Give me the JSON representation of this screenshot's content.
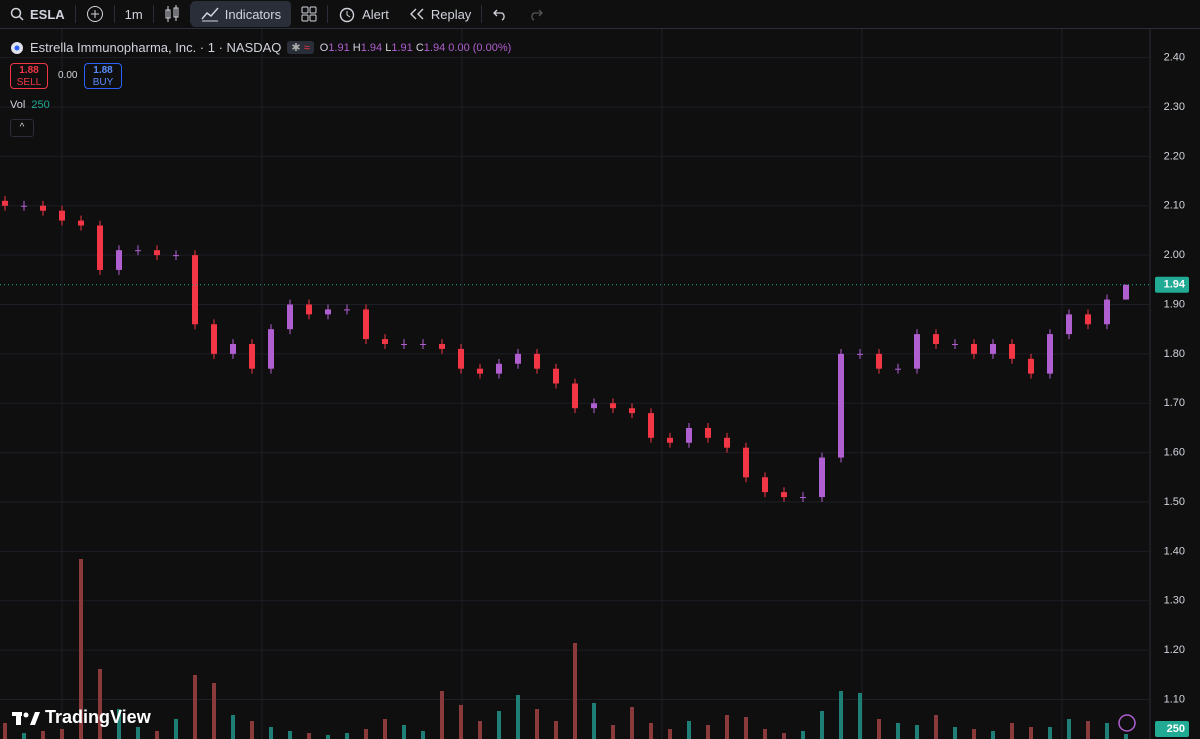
{
  "toolbar": {
    "symbol": "ESLA",
    "interval": "1m",
    "indicators": "Indicators",
    "alert": "Alert",
    "replay": "Replay"
  },
  "legend": {
    "title": "Estrella Immunopharma, Inc. · 1 · NASDAQ",
    "ohlc_labels": [
      "O",
      "H",
      "L",
      "C"
    ],
    "change": "0.00 (0.00%)",
    "sell_price": "1.88",
    "sell": "SELL",
    "spread": "0.00",
    "buy_price": "1.88",
    "buy": "BUY",
    "volume_label": "Vol"
  },
  "brand": "TradingView",
  "chart_data": {
    "type": "candlestick",
    "open": [
      2.11,
      2.1,
      2.1,
      2.09,
      2.07,
      2.06,
      1.97,
      2.01,
      2.01,
      2.0,
      2.0,
      1.86,
      1.8,
      1.82,
      1.77,
      1.85,
      1.9,
      1.88,
      1.89,
      1.89,
      1.83,
      1.82,
      1.82,
      1.82,
      1.81,
      1.77,
      1.76,
      1.78,
      1.8,
      1.77,
      1.74,
      1.69,
      1.7,
      1.69,
      1.68,
      1.63,
      1.62,
      1.65,
      1.63,
      1.61,
      1.55,
      1.52,
      1.51,
      1.51,
      1.59,
      1.8,
      1.8,
      1.77,
      1.77,
      1.84,
      1.82,
      1.82,
      1.8,
      1.82,
      1.79,
      1.76,
      1.84,
      1.88,
      1.86,
      1.91
    ],
    "high": [
      2.12,
      2.11,
      2.11,
      2.1,
      2.08,
      2.07,
      2.02,
      2.02,
      2.02,
      2.01,
      2.01,
      1.87,
      1.83,
      1.83,
      1.86,
      1.91,
      1.91,
      1.9,
      1.9,
      1.9,
      1.84,
      1.83,
      1.83,
      1.83,
      1.82,
      1.78,
      1.79,
      1.81,
      1.81,
      1.78,
      1.75,
      1.71,
      1.71,
      1.7,
      1.69,
      1.64,
      1.66,
      1.66,
      1.64,
      1.62,
      1.56,
      1.53,
      1.52,
      1.6,
      1.81,
      1.81,
      1.81,
      1.78,
      1.85,
      1.85,
      1.83,
      1.83,
      1.83,
      1.83,
      1.8,
      1.85,
      1.89,
      1.89,
      1.92,
      1.94
    ],
    "low": [
      2.09,
      2.09,
      2.08,
      2.06,
      2.05,
      1.96,
      1.96,
      2.0,
      1.99,
      1.99,
      1.85,
      1.79,
      1.79,
      1.76,
      1.76,
      1.84,
      1.87,
      1.87,
      1.88,
      1.82,
      1.81,
      1.81,
      1.81,
      1.8,
      1.76,
      1.75,
      1.75,
      1.77,
      1.76,
      1.73,
      1.68,
      1.68,
      1.68,
      1.67,
      1.62,
      1.61,
      1.61,
      1.62,
      1.6,
      1.54,
      1.51,
      1.5,
      1.5,
      1.5,
      1.58,
      1.79,
      1.76,
      1.76,
      1.76,
      1.81,
      1.81,
      1.79,
      1.79,
      1.78,
      1.75,
      1.75,
      1.83,
      1.85,
      1.85,
      1.91
    ],
    "close": [
      2.1,
      2.1,
      2.09,
      2.07,
      2.06,
      1.97,
      2.01,
      2.01,
      2.0,
      2.0,
      1.86,
      1.8,
      1.82,
      1.77,
      1.85,
      1.9,
      1.88,
      1.89,
      1.89,
      1.83,
      1.82,
      1.82,
      1.82,
      1.81,
      1.77,
      1.76,
      1.78,
      1.8,
      1.77,
      1.74,
      1.69,
      1.7,
      1.69,
      1.68,
      1.63,
      1.62,
      1.65,
      1.63,
      1.61,
      1.55,
      1.52,
      1.51,
      1.51,
      1.59,
      1.8,
      1.8,
      1.77,
      1.77,
      1.84,
      1.82,
      1.82,
      1.8,
      1.82,
      1.79,
      1.76,
      1.84,
      1.88,
      1.86,
      1.91,
      1.94
    ],
    "volume": [
      800,
      300,
      400,
      500,
      9000,
      3500,
      1500,
      600,
      400,
      1000,
      3200,
      2800,
      1200,
      900,
      600,
      400,
      300,
      200,
      300,
      500,
      1000,
      700,
      400,
      2400,
      1700,
      900,
      1400,
      2200,
      1500,
      900,
      4800,
      1800,
      700,
      1600,
      800,
      500,
      900,
      700,
      1200,
      1100,
      500,
      300,
      400,
      1400,
      2400,
      2300,
      1000,
      800,
      700,
      1200,
      600,
      500,
      400,
      800,
      600,
      600,
      1000,
      900,
      800,
      250
    ],
    "ylim": [
      1.02,
      2.46
    ],
    "yticks": [
      {
        "value": 1.1,
        "label": "1.10"
      },
      {
        "value": 1.2,
        "label": "1.20"
      },
      {
        "value": 1.3,
        "label": "1.30"
      },
      {
        "value": 1.4,
        "label": "1.40"
      },
      {
        "value": 1.5,
        "label": "1.50"
      },
      {
        "value": 1.6,
        "label": "1.60"
      },
      {
        "value": 1.7,
        "label": "1.70"
      },
      {
        "value": 1.8,
        "label": "1.80"
      },
      {
        "value": 1.9,
        "label": "1.90"
      },
      {
        "value": 2.0,
        "label": "2.00"
      },
      {
        "value": 2.1,
        "label": "2.10"
      },
      {
        "value": 2.2,
        "label": "2.20"
      },
      {
        "value": 2.3,
        "label": "2.30"
      },
      {
        "value": 2.4,
        "label": "2.40"
      }
    ],
    "volume_ylim": [
      0,
      10000
    ],
    "grid": true,
    "up_color": "#b05fd0",
    "down_color": "#f23645",
    "volume_up_color": "#1e7f76",
    "volume_down_color": "#8a3a3a",
    "last_price_color": "#22ab94"
  }
}
